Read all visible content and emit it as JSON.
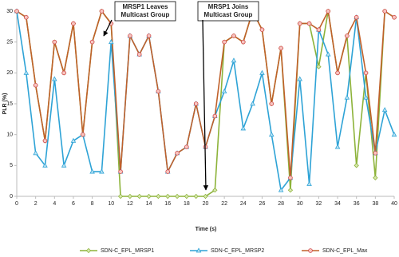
{
  "chart_data": {
    "type": "line",
    "x_label": "Time (s)",
    "y_label": "PLR (%)",
    "x": [
      0,
      1,
      2,
      3,
      4,
      5,
      6,
      7,
      8,
      9,
      10,
      11,
      12,
      13,
      14,
      15,
      16,
      17,
      18,
      19,
      20,
      21,
      22,
      23,
      24,
      25,
      26,
      27,
      28,
      29,
      30,
      31,
      32,
      33,
      34,
      35,
      36,
      37,
      38,
      39,
      40
    ],
    "xlim": [
      0,
      40
    ],
    "xticks": [
      0,
      2,
      4,
      6,
      8,
      10,
      12,
      14,
      16,
      18,
      20,
      22,
      24,
      26,
      28,
      30,
      32,
      34,
      36,
      38,
      40
    ],
    "ylim": [
      0,
      30
    ],
    "yticks": [
      0,
      5,
      10,
      15,
      20,
      25,
      30
    ],
    "grid": false,
    "legend": "bottom",
    "series": [
      {
        "name": "SDN-C_EPL_MRSP1",
        "color": "#8db33a",
        "marker": "diamond",
        "values": [
          30,
          29,
          18,
          9,
          25,
          20,
          28,
          10,
          25,
          30,
          28,
          0,
          0,
          0,
          0,
          0,
          0,
          0,
          0,
          0,
          0,
          1,
          25,
          26,
          25,
          30,
          27,
          15,
          24,
          1,
          28,
          28,
          21,
          30,
          20,
          26,
          5,
          20,
          3,
          30,
          29
        ]
      },
      {
        "name": "SDN-C_EPL_MRSP2",
        "color": "#2ea3d6",
        "marker": "triangle",
        "values": [
          30,
          20,
          7,
          5,
          19,
          5,
          9,
          10,
          4,
          4,
          25,
          4,
          26,
          23,
          26,
          17,
          4,
          7,
          8,
          15,
          8,
          13,
          17,
          22,
          11,
          15,
          20,
          10,
          1,
          3,
          19,
          2,
          27,
          23,
          8,
          16,
          29,
          16,
          7,
          14,
          10
        ]
      },
      {
        "name": "SDN-C_EPL_Max",
        "color": "#c0602a",
        "marker": "circle",
        "values": [
          30,
          29,
          18,
          9,
          25,
          20,
          28,
          10,
          25,
          30,
          28,
          4,
          26,
          23,
          26,
          17,
          4,
          7,
          8,
          15,
          8,
          13,
          25,
          26,
          25,
          30,
          27,
          15,
          24,
          3,
          28,
          28,
          27,
          30,
          20,
          26,
          29,
          20,
          7,
          30,
          29
        ]
      }
    ],
    "annotations": [
      {
        "text": [
          "MRSP1 Leaves",
          "Multicast Group"
        ]
      },
      {
        "text": [
          "MRSP1 Joins",
          "Multicast Group"
        ]
      }
    ]
  }
}
